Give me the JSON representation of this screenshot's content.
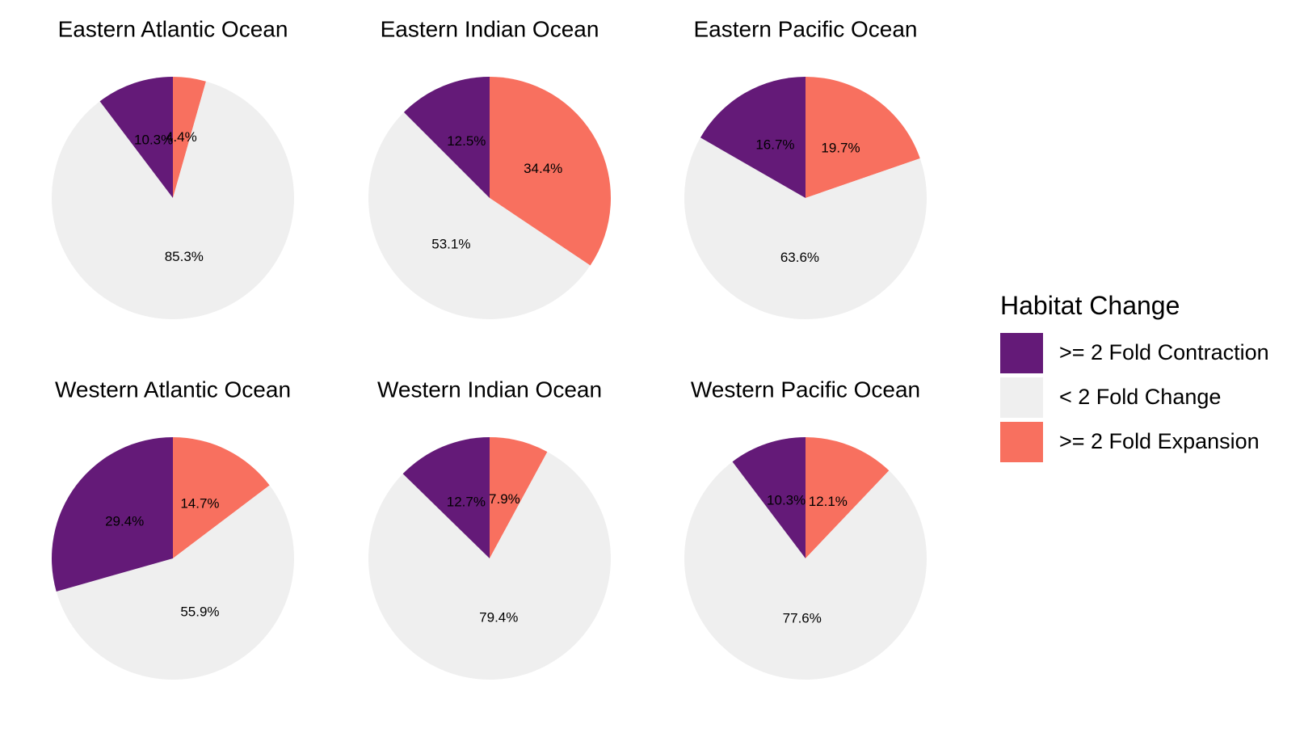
{
  "chart_data": {
    "type": "pie",
    "facets": [
      "Eastern Atlantic Ocean",
      "Eastern Indian Ocean",
      "Eastern Pacific Ocean",
      "Western Atlantic Ocean",
      "Western Indian Ocean",
      "Western Pacific Ocean"
    ],
    "categories": [
      ">= 2 Fold Contraction",
      "< 2 Fold Change",
      ">= 2 Fold Expansion"
    ],
    "colors": {
      ">= 2 Fold Contraction": "#641A78",
      "< 2 Fold Change": "#EFEFEF",
      ">= 2 Fold Expansion": "#F8705F"
    },
    "legend": {
      "title": "Habitat Change",
      "position": "right"
    },
    "panels": [
      {
        "title": "Eastern Atlantic Ocean",
        "values": {
          ">= 2 Fold Contraction": 10.3,
          "< 2 Fold Change": 85.3,
          ">= 2 Fold Expansion": 4.4
        },
        "labels": {
          ">= 2 Fold Contraction": "10.3%",
          "< 2 Fold Change": "85.3%",
          ">= 2 Fold Expansion": "4.4%"
        }
      },
      {
        "title": "Eastern Indian Ocean",
        "values": {
          ">= 2 Fold Contraction": 12.5,
          "< 2 Fold Change": 53.1,
          ">= 2 Fold Expansion": 34.4
        },
        "labels": {
          ">= 2 Fold Contraction": "12.5%",
          "< 2 Fold Change": "53.1%",
          ">= 2 Fold Expansion": "34.4%"
        }
      },
      {
        "title": "Eastern Pacific Ocean",
        "values": {
          ">= 2 Fold Contraction": 16.7,
          "< 2 Fold Change": 63.6,
          ">= 2 Fold Expansion": 19.7
        },
        "labels": {
          ">= 2 Fold Contraction": "16.7%",
          "< 2 Fold Change": "63.6%",
          ">= 2 Fold Expansion": "19.7%"
        }
      },
      {
        "title": "Western Atlantic Ocean",
        "values": {
          ">= 2 Fold Contraction": 29.4,
          "< 2 Fold Change": 55.9,
          ">= 2 Fold Expansion": 14.7
        },
        "labels": {
          ">= 2 Fold Contraction": "29.4%",
          "< 2 Fold Change": "55.9%",
          ">= 2 Fold Expansion": "14.7%"
        }
      },
      {
        "title": "Western Indian Ocean",
        "values": {
          ">= 2 Fold Contraction": 12.7,
          "< 2 Fold Change": 79.4,
          ">= 2 Fold Expansion": 7.9
        },
        "labels": {
          ">= 2 Fold Contraction": "12.7%",
          "< 2 Fold Change": "79.4%",
          ">= 2 Fold Expansion": "7.9%"
        }
      },
      {
        "title": "Western Pacific Ocean",
        "values": {
          ">= 2 Fold Contraction": 10.3,
          "< 2 Fold Change": 77.6,
          ">= 2 Fold Expansion": 12.1
        },
        "labels": {
          ">= 2 Fold Contraction": "10.3%",
          "< 2 Fold Change": "77.6%",
          ">= 2 Fold Expansion": "12.1%"
        }
      }
    ]
  }
}
